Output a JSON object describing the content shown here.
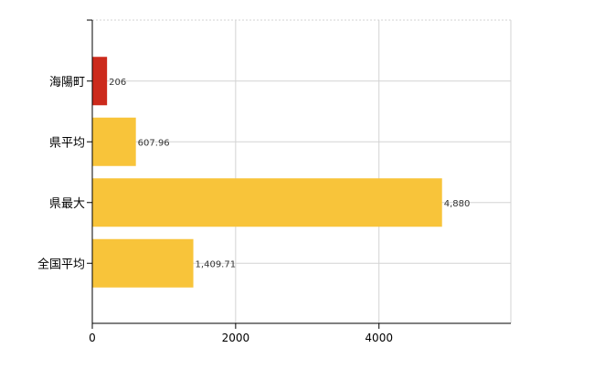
{
  "chart_data": {
    "type": "bar",
    "orientation": "horizontal",
    "title": "",
    "xlabel": "",
    "ylabel": "",
    "categories": [
      "海陽町",
      "県平均",
      "県最大",
      "全国平均"
    ],
    "values": [
      206,
      607.96,
      4880,
      1409.71
    ],
    "value_labels": [
      "206",
      "607.96",
      "4,880",
      "1,409.71"
    ],
    "bar_colors": [
      "#cc2a1c",
      "#f8c43a",
      "#f8c43a",
      "#f8c43a"
    ],
    "xlim": [
      0,
      5840
    ],
    "xticks": [
      0,
      2000,
      4000
    ],
    "xtick_labels": [
      "0",
      "2000",
      "4000"
    ],
    "grid": true,
    "legend": "none"
  }
}
